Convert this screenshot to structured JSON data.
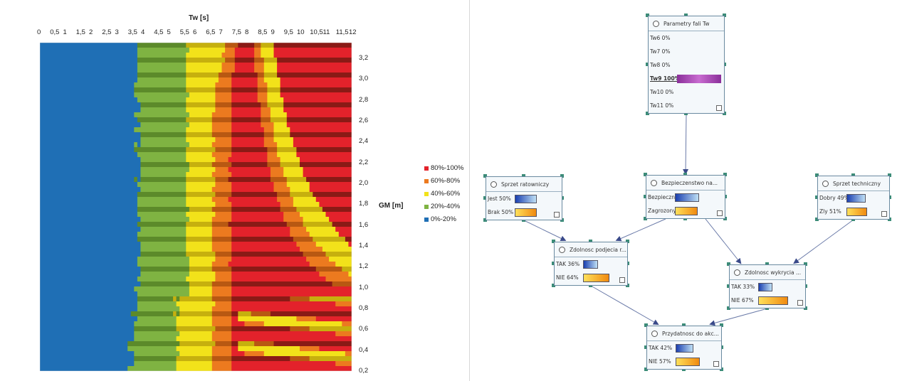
{
  "chart_data": {
    "type": "heatmap",
    "title": "",
    "xlabel": "Tw [s]",
    "ylabel": "GM [m]",
    "x_ticks": [
      "0",
      "0,5",
      "1",
      "1,5",
      "2",
      "2,5",
      "3",
      "3,5",
      "4",
      "4,5",
      "5",
      "5,5",
      "6",
      "6,5",
      "7",
      "7,5",
      "8",
      "8,5",
      "9",
      "9,5",
      "10",
      "10,5",
      "11",
      "11,5",
      "12"
    ],
    "y_ticks": [
      "3,2",
      "3,0",
      "2,8",
      "2,6",
      "2,4",
      "2,2",
      "2,0",
      "1,8",
      "1,6",
      "1,4",
      "1,2",
      "1,0",
      "0,8",
      "0,6",
      "0,4",
      "0,2"
    ],
    "xlim": [
      0,
      12
    ],
    "ylim": [
      0.2,
      3.35
    ],
    "legend_position": "right",
    "legend": [
      {
        "label": "80%-100%",
        "color": "#e3222b"
      },
      {
        "label": "60%-80%",
        "color": "#ec7a1f"
      },
      {
        "label": "40%-60%",
        "color": "#f2e21a"
      },
      {
        "label": "20%-40%",
        "color": "#7fb342"
      },
      {
        "label": "0%-20%",
        "color": "#1f6fb5"
      }
    ],
    "bands": [
      {
        "label": "0%-20%",
        "color": "#1f6fb5",
        "approx_boundary_tw": 4.0
      },
      {
        "label": "20%-40%",
        "color": "#7fb342",
        "approx_boundary_tw": 5.5
      },
      {
        "label": "40%-60%",
        "color": "#f2e21a",
        "approx_boundary_tw": 6.5
      },
      {
        "label": "60%-80%",
        "color": "#ec7a1f",
        "approx_boundary_tw": 7.2
      },
      {
        "label": "80%-100%",
        "color": "#e3222b",
        "approx_boundary_tw": 12
      }
    ]
  },
  "network": {
    "colors": {
      "blue_start": "#1a3fb0",
      "blue_end": "#bfe0f5",
      "orange_start": "#ffe05a",
      "orange_end": "#f08a10",
      "purple": "#9c3fa8",
      "edge": "#6a7aa8"
    },
    "nodes": [
      {
        "id": "tw",
        "title": "Parametry fali Tw",
        "rows": [
          {
            "label": "Tw6",
            "value": "0%",
            "frac": 0
          },
          {
            "label": "Tw7",
            "value": "0%",
            "frac": 0
          },
          {
            "label": "Tw8",
            "value": "0%",
            "frac": 0
          },
          {
            "label": "Tw9",
            "value": "100%",
            "frac": 1,
            "selected": true
          },
          {
            "label": "Tw10",
            "value": "0%",
            "frac": 0
          },
          {
            "label": "Tw11",
            "value": "0%",
            "frac": 0
          }
        ]
      },
      {
        "id": "ratown",
        "title": "Sprzet ratowniczy",
        "rows": [
          {
            "label": "Jest",
            "value": "50%",
            "frac": 0.5,
            "kind": "blue"
          },
          {
            "label": "Brak",
            "value": "50%",
            "frac": 0.5,
            "kind": "orange"
          }
        ]
      },
      {
        "id": "bezp",
        "title": "Bezpieczenstwo na...",
        "rows": [
          {
            "label": "Bezpieczny",
            "value": "52%",
            "frac": 0.52,
            "kind": "blue"
          },
          {
            "label": "Zagrozony",
            "value": "48%",
            "frac": 0.48,
            "kind": "orange"
          }
        ]
      },
      {
        "id": "techn",
        "title": "Sprzet techniczny",
        "rows": [
          {
            "label": "Dobry",
            "value": "49%",
            "frac": 0.49,
            "kind": "blue"
          },
          {
            "label": "Zly",
            "value": "51%",
            "frac": 0.51,
            "kind": "orange"
          }
        ]
      },
      {
        "id": "podjecie",
        "title": "Zdolnosc podjecia r...",
        "rows": [
          {
            "label": "TAK",
            "value": "36%",
            "frac": 0.36,
            "kind": "blue"
          },
          {
            "label": "NIE",
            "value": "64%",
            "frac": 0.64,
            "kind": "orange"
          }
        ]
      },
      {
        "id": "wykrycie",
        "title": "Zdolnosc wykrycia ...",
        "rows": [
          {
            "label": "TAK",
            "value": "33%",
            "frac": 0.33,
            "kind": "blue"
          },
          {
            "label": "NIE",
            "value": "67%",
            "frac": 0.67,
            "kind": "orange"
          }
        ]
      },
      {
        "id": "przyd",
        "title": "Przydatnosc do akc...",
        "rows": [
          {
            "label": "TAK",
            "value": "42%",
            "frac": 0.42,
            "kind": "blue"
          },
          {
            "label": "NIE",
            "value": "57%",
            "frac": 0.57,
            "kind": "orange"
          }
        ]
      }
    ],
    "edges": [
      {
        "from": "tw",
        "to": "bezp"
      },
      {
        "from": "ratown",
        "to": "podjecie"
      },
      {
        "from": "bezp",
        "to": "podjecie"
      },
      {
        "from": "bezp",
        "to": "wykrycie"
      },
      {
        "from": "techn",
        "to": "wykrycie"
      },
      {
        "from": "podjecie",
        "to": "przyd"
      },
      {
        "from": "wykrycie",
        "to": "przyd"
      }
    ]
  }
}
